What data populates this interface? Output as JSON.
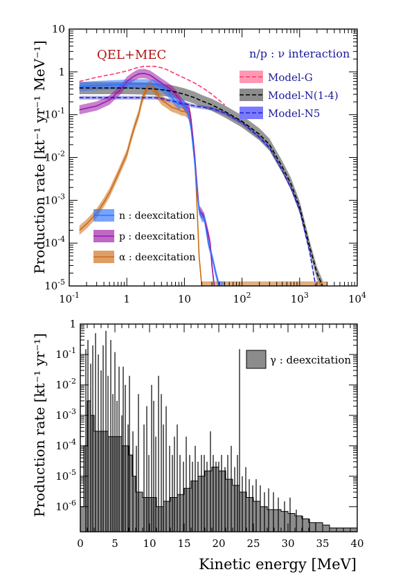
{
  "chart_data": [
    {
      "type": "line",
      "x_scale": "log",
      "y_scale": "log",
      "xlim": [
        0.1,
        10000
      ],
      "ylim": [
        1e-05,
        10
      ],
      "x_ticks": [
        "10^-1",
        "1",
        "10",
        "10^2",
        "10^3",
        "10^4"
      ],
      "y_ticks": [
        "10^-5",
        "10^-4",
        "10^-3",
        "10^-2",
        "10^-1",
        "1",
        "10"
      ],
      "ylabel": "Production rate [kt⁻¹ yr⁻¹ MeV⁻¹]",
      "annotation": "QEL+MEC",
      "legend_title": "n/p : ν interaction",
      "colors": {
        "model_g": "#ff3370",
        "model_n14": "#000000",
        "model_n14_band": "#8c8c8c",
        "model_n5": "#1f1fcc",
        "n": "#2f73ff",
        "p": "#9b1aa6",
        "alpha": "#cc6b14",
        "annotation": "#b01414",
        "legend_title": "#1a1a99"
      },
      "series": [
        {
          "name": "Model-G",
          "style": "dashed",
          "x": [
            0.15,
            0.3,
            0.6,
            1,
            1.5,
            2,
            3,
            4,
            5,
            7,
            10,
            15,
            20,
            30,
            50
          ],
          "y": [
            0.6,
            0.75,
            0.9,
            1.05,
            1.25,
            1.35,
            1.35,
            1.25,
            1.12,
            0.9,
            0.72,
            0.55,
            0.44,
            0.3,
            0.17
          ]
        },
        {
          "name": "Model-N(1-4)",
          "style": "dashed-band",
          "x": [
            0.15,
            0.3,
            0.6,
            1,
            2,
            3,
            5,
            7,
            10,
            15,
            20,
            30,
            50,
            100,
            200,
            300,
            500,
            700,
            1000,
            1500,
            2000,
            2500
          ],
          "y": [
            0.42,
            0.42,
            0.42,
            0.42,
            0.41,
            0.4,
            0.37,
            0.34,
            0.3,
            0.25,
            0.21,
            0.17,
            0.12,
            0.07,
            0.035,
            0.02,
            0.006,
            0.0025,
            0.0007,
            8e-05,
            2e-05,
            1e-05
          ]
        },
        {
          "name": "Model-N5",
          "style": "dashed",
          "x": [
            0.15,
            0.5,
            1,
            2,
            3,
            4,
            5,
            6,
            7,
            8,
            9,
            10,
            12,
            15,
            20,
            30,
            50,
            100,
            200,
            300,
            500,
            700,
            1000,
            1500,
            1900
          ],
          "y": [
            0.25,
            0.25,
            0.25,
            0.25,
            0.25,
            0.24,
            0.22,
            0.21,
            0.2,
            0.19,
            0.18,
            0.18,
            0.17,
            0.16,
            0.15,
            0.14,
            0.11,
            0.065,
            0.03,
            0.017,
            0.005,
            0.002,
            0.0006,
            6e-05,
            1e-05
          ]
        },
        {
          "name": "n : deexcitation",
          "x": [
            0.15,
            0.3,
            0.6,
            1,
            2,
            3,
            4,
            5,
            6,
            7,
            8,
            9,
            10,
            11,
            12,
            13,
            14,
            15,
            16,
            17,
            18,
            20,
            22,
            24,
            26,
            30,
            35,
            40,
            45,
            50
          ],
          "y": [
            0.45,
            0.48,
            0.5,
            0.52,
            0.53,
            0.52,
            0.45,
            0.35,
            0.26,
            0.2,
            0.17,
            0.19,
            0.17,
            0.13,
            0.09,
            0.05,
            0.02,
            0.008,
            0.003,
            0.0012,
            0.0006,
            0.0004,
            0.0004,
            0.0002,
            0.0001,
            5e-05,
            2e-05,
            1e-05,
            1e-05,
            1e-05
          ]
        },
        {
          "name": "p : deexcitation",
          "x": [
            0.15,
            0.3,
            0.5,
            0.8,
            1,
            1.3,
            1.6,
            2,
            2.5,
            3,
            4,
            5,
            6,
            7,
            8,
            9,
            10,
            11,
            12,
            13,
            14,
            15,
            16,
            17,
            18,
            20,
            22,
            25,
            28,
            30,
            33
          ],
          "y": [
            0.13,
            0.16,
            0.22,
            0.4,
            0.6,
            0.78,
            0.9,
            0.92,
            0.85,
            0.72,
            0.55,
            0.45,
            0.38,
            0.3,
            0.24,
            0.19,
            0.16,
            0.15,
            0.14,
            0.08,
            0.03,
            0.012,
            0.004,
            0.0015,
            0.0006,
            0.0005,
            0.0004,
            0.0002,
            0.0001,
            3e-05,
            1e-05
          ]
        },
        {
          "name": "α : deexcitation",
          "x": [
            0.15,
            0.2,
            0.3,
            0.4,
            0.5,
            0.7,
            1,
            1.2,
            1.4,
            1.6,
            1.8,
            2,
            2.3,
            2.6,
            3,
            3.5,
            4,
            5,
            6,
            7,
            8,
            9,
            10,
            11,
            12,
            13,
            14,
            15,
            16,
            17,
            18,
            20,
            25,
            30,
            40,
            50,
            100,
            300,
            1000,
            3000
          ],
          "y": [
            0.0002,
            0.00028,
            0.0005,
            0.0009,
            0.0015,
            0.004,
            0.012,
            0.03,
            0.06,
            0.1,
            0.2,
            0.3,
            0.45,
            0.5,
            0.4,
            0.28,
            0.22,
            0.18,
            0.15,
            0.14,
            0.13,
            0.12,
            0.12,
            0.11,
            0.1,
            0.06,
            0.03,
            0.01,
            0.002,
            0.0003,
            5e-05,
            1e-05,
            1e-05,
            1e-05,
            1e-05,
            1e-05,
            1e-05,
            1e-05,
            1e-05,
            1e-05
          ]
        }
      ],
      "legend_bottom_left": [
        "n : deexcitation",
        "p : deexcitation",
        "α : deexcitation"
      ],
      "legend_top_right": [
        "Model-G",
        "Model-N(1-4)",
        "Model-N5"
      ]
    },
    {
      "type": "area",
      "x_scale": "linear",
      "y_scale": "log",
      "xlim": [
        0,
        40
      ],
      "ylim": [
        1.5e-07,
        1
      ],
      "x_ticks": [
        "0",
        "5",
        "10",
        "15",
        "20",
        "25",
        "30",
        "35",
        "40"
      ],
      "y_ticks": [
        "10^-6",
        "10^-5",
        "10^-4",
        "10^-3",
        "10^-2",
        "10^-1",
        "1"
      ],
      "xlabel": "Kinetic energy [MeV]",
      "ylabel": "Production rate [kt⁻¹ yr⁻¹]",
      "legend": [
        "γ : deexcitation"
      ],
      "colors": {
        "fill": "#8c8c8c",
        "line": "#000000"
      },
      "envelope": {
        "x": [
          0,
          0.5,
          1,
          1.5,
          2,
          2.5,
          3,
          4,
          5,
          6,
          7,
          7.5,
          8,
          9,
          10,
          11,
          12,
          13,
          14,
          15,
          16,
          17,
          18,
          19,
          20,
          21,
          22,
          23,
          24,
          25,
          26,
          27,
          28,
          29,
          30,
          31,
          32,
          33,
          34,
          35,
          36,
          37,
          38,
          39,
          40
        ],
        "y": [
          1e-06,
          0.0001,
          0.003,
          0.001,
          0.0003,
          0.0003,
          0.0003,
          0.0002,
          0.0002,
          0.0001,
          5e-05,
          1e-05,
          3e-06,
          2e-06,
          2e-06,
          1e-06,
          1.5e-06,
          2e-06,
          2.5e-06,
          4e-06,
          7e-06,
          1e-05,
          1.5e-05,
          2e-05,
          1.5e-05,
          8e-06,
          5e-06,
          3e-06,
          2e-06,
          1.5e-06,
          1e-06,
          8e-07,
          8e-07,
          7e-07,
          6e-07,
          5e-07,
          4e-07,
          3e-07,
          3e-07,
          2.5e-07,
          2e-07,
          2e-07,
          2e-07,
          2e-07,
          2e-07
        ]
      },
      "lines": {
        "x": [
          0.8,
          1.1,
          1.5,
          1.8,
          2.2,
          2.6,
          3.0,
          3.3,
          3.7,
          4.0,
          4.4,
          4.7,
          5.0,
          5.3,
          5.6,
          6.0,
          6.2,
          6.5,
          6.9,
          7.1,
          7.6,
          8.1,
          8.4,
          9.2,
          9.6,
          9.9,
          10.3,
          10.6,
          10.9,
          11.3,
          11.7,
          12.0,
          12.4,
          12.9,
          13.3,
          13.6,
          14.0,
          14.4,
          14.9,
          15.3,
          15.8,
          16.2,
          16.6,
          17.0,
          17.5,
          17.9,
          18.3,
          18.8,
          19.2,
          19.6,
          20.0,
          20.4,
          20.9,
          21.3,
          21.8,
          22.3,
          22.7,
          23.0,
          23.4,
          23.9,
          24.4,
          24.9,
          25.4,
          26.0,
          26.6,
          27.2,
          27.9,
          28.6,
          29.5,
          30.3,
          31.2,
          32.1,
          33.1,
          34.0
        ],
        "y": [
          0.15,
          0.3,
          0.05,
          0.2,
          0.5,
          0.1,
          0.03,
          0.2,
          0.6,
          0.02,
          0.3,
          0.005,
          0.12,
          0.003,
          0.04,
          0.001,
          0.04,
          0.01,
          0.0005,
          0.02,
          0.0003,
          0.0001,
          0.005,
          0.0005,
          0.002,
          5e-05,
          0.01,
          0.003,
          0.0002,
          0.02,
          0.005,
          0.0005,
          0.002,
          0.0001,
          5e-05,
          0.0002,
          0.0005,
          5e-05,
          3e-05,
          0.0002,
          5e-05,
          3e-05,
          0.0001,
          3e-05,
          5e-05,
          5e-05,
          3e-05,
          0.0003,
          5e-05,
          3e-05,
          3e-05,
          5e-05,
          2e-05,
          5e-05,
          0.0001,
          2e-05,
          5e-05,
          0.15,
          1e-05,
          2e-05,
          8e-06,
          5e-06,
          8e-06,
          5e-06,
          3e-06,
          4e-06,
          3e-06,
          2e-06,
          1.5e-06,
          2e-06,
          8e-07,
          5e-07,
          4e-07,
          3e-07
        ]
      }
    }
  ]
}
